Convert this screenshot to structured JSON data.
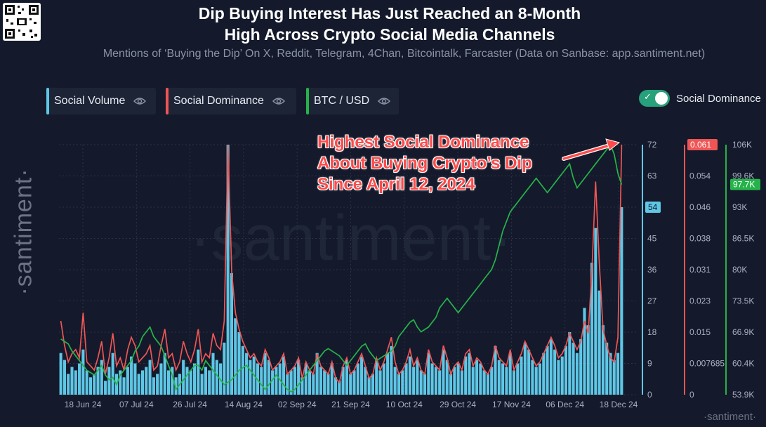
{
  "header": {
    "title_line1": "Dip Buying Interest Has Just Reached an 8-Month",
    "title_line2": "High Across Crypto Social Media Channels",
    "subtitle": "Mentions of ‘Buying the Dip’ On X, Reddit, Telegram, 4Chan, Bitcointalk, Farcaster (Data on Sanbase: app.santiment.net)"
  },
  "legend": [
    {
      "label": "Social Volume",
      "color": "#5fc7e6"
    },
    {
      "label": "Social Dominance",
      "color": "#ef5555"
    },
    {
      "label": "BTC / USD",
      "color": "#26b34a"
    }
  ],
  "toggle": {
    "label": "Social Dominance",
    "on": true
  },
  "annotation": {
    "line1": "Highest Social Dominance",
    "line2": "About Buying Crypto’s Dip",
    "line3": "Since April 12, 2024"
  },
  "branding": {
    "side": "·santiment·",
    "bottom": "·santiment·",
    "watermark": "·santiment·"
  },
  "colors": {
    "volume": "#5fc7e6",
    "dominance": "#ef5555",
    "btc": "#26b34a",
    "background": "#141a2b"
  },
  "chart_data": {
    "type": "bar",
    "x_ticks": [
      "18 Jun 24",
      "07 Jul 24",
      "26 Jul 24",
      "14 Aug 24",
      "02 Sep 24",
      "21 Sep 24",
      "10 Oct 24",
      "29 Oct 24",
      "17 Nov 24",
      "06 Dec 24",
      "18 Dec 24"
    ],
    "axes": {
      "volume": {
        "ticks": [
          "72",
          "63",
          "54",
          "45",
          "36",
          "27",
          "18",
          "9",
          "0"
        ],
        "range": [
          0,
          72
        ],
        "current": "54",
        "color": "#5fc7e6"
      },
      "dominance": {
        "ticks": [
          "0.061",
          "0.054",
          "0.046",
          "0.038",
          "0.031",
          "0.023",
          "0.015",
          "0.007685",
          "0"
        ],
        "range": [
          0,
          0.061
        ],
        "current": "0.061",
        "color": "#ef5555"
      },
      "btc": {
        "ticks": [
          "106K",
          "99.6K",
          "93K",
          "86.5K",
          "80K",
          "73.5K",
          "66.9K",
          "60.4K",
          "53.9K"
        ],
        "range": [
          53.9,
          106
        ],
        "current": "97.7K",
        "color": "#26b34a"
      }
    },
    "series": [
      {
        "name": "Social Volume",
        "type": "bar",
        "values": [
          12,
          10,
          6,
          8,
          7,
          9,
          13,
          7,
          5,
          6,
          8,
          10,
          4,
          8,
          12,
          6,
          7,
          5,
          8,
          11,
          9,
          6,
          7,
          8,
          10,
          5,
          6,
          9,
          12,
          7,
          8,
          5,
          6,
          10,
          8,
          7,
          9,
          13,
          6,
          8,
          7,
          12,
          10,
          9,
          15,
          72,
          35,
          22,
          18,
          14,
          12,
          10,
          11,
          9,
          8,
          12,
          10,
          7,
          8,
          9,
          11,
          6,
          7,
          8,
          10,
          5,
          9,
          7,
          6,
          12,
          8,
          7,
          6,
          9,
          5,
          4,
          8,
          10,
          6,
          7,
          9,
          11,
          8,
          5,
          6,
          10,
          7,
          9,
          12,
          14,
          8,
          6,
          7,
          9,
          11,
          8,
          10,
          7,
          6,
          12,
          9,
          8,
          7,
          13,
          10,
          6,
          8,
          9,
          7,
          11,
          12,
          8,
          10,
          9,
          7,
          6,
          8,
          14,
          10,
          9,
          8,
          12,
          7,
          9,
          11,
          15,
          13,
          10,
          8,
          9,
          12,
          14,
          16,
          13,
          10,
          11,
          14,
          18,
          15,
          12,
          16,
          25,
          20,
          38,
          48,
          30,
          20,
          15,
          12,
          10,
          12,
          54
        ],
        "range": [
          0,
          72
        ]
      },
      {
        "name": "Social Dominance",
        "type": "line",
        "values": [
          0.018,
          0.012,
          0.008,
          0.01,
          0.011,
          0.009,
          0.02,
          0.008,
          0.007,
          0.006,
          0.009,
          0.013,
          0.005,
          0.009,
          0.015,
          0.007,
          0.009,
          0.006,
          0.011,
          0.014,
          0.012,
          0.008,
          0.009,
          0.01,
          0.012,
          0.006,
          0.007,
          0.012,
          0.016,
          0.009,
          0.01,
          0.006,
          0.008,
          0.013,
          0.01,
          0.008,
          0.011,
          0.016,
          0.008,
          0.01,
          0.009,
          0.015,
          0.012,
          0.011,
          0.018,
          0.061,
          0.03,
          0.02,
          0.016,
          0.013,
          0.011,
          0.009,
          0.01,
          0.008,
          0.007,
          0.011,
          0.009,
          0.006,
          0.007,
          0.008,
          0.01,
          0.005,
          0.006,
          0.007,
          0.009,
          0.004,
          0.008,
          0.006,
          0.005,
          0.01,
          0.007,
          0.006,
          0.005,
          0.008,
          0.004,
          0.003,
          0.007,
          0.009,
          0.005,
          0.006,
          0.008,
          0.01,
          0.007,
          0.004,
          0.005,
          0.009,
          0.006,
          0.008,
          0.011,
          0.014,
          0.008,
          0.005,
          0.006,
          0.008,
          0.011,
          0.007,
          0.009,
          0.006,
          0.005,
          0.011,
          0.008,
          0.007,
          0.006,
          0.012,
          0.009,
          0.005,
          0.007,
          0.008,
          0.006,
          0.01,
          0.011,
          0.007,
          0.009,
          0.008,
          0.006,
          0.005,
          0.007,
          0.012,
          0.009,
          0.008,
          0.007,
          0.011,
          0.006,
          0.008,
          0.01,
          0.013,
          0.011,
          0.009,
          0.007,
          0.008,
          0.01,
          0.012,
          0.014,
          0.012,
          0.009,
          0.01,
          0.012,
          0.015,
          0.013,
          0.011,
          0.013,
          0.018,
          0.015,
          0.03,
          0.052,
          0.032,
          0.016,
          0.012,
          0.009,
          0.008,
          0.014,
          0.061
        ],
        "range": [
          0,
          0.061
        ]
      },
      {
        "name": "BTC / USD",
        "type": "line",
        "values": [
          65.5,
          65,
          64.5,
          63,
          62,
          61,
          60,
          59,
          58.5,
          58,
          59,
          60,
          58,
          57,
          57.5,
          56,
          58,
          59,
          60,
          61,
          63,
          64,
          66,
          67,
          68,
          66,
          65,
          64,
          62,
          60,
          58,
          55,
          56,
          57,
          58,
          59,
          60,
          60,
          59,
          61,
          60,
          59,
          58,
          57,
          56,
          56.5,
          57,
          58,
          59,
          59.5,
          60,
          59,
          58,
          57,
          56,
          55,
          56,
          57,
          58,
          57,
          56,
          55,
          54.5,
          55,
          56,
          57,
          58,
          59,
          60,
          61,
          62,
          63,
          63.5,
          63,
          62.5,
          62,
          61,
          60,
          61,
          62,
          63,
          64,
          64.5,
          63,
          62,
          61,
          61.5,
          62,
          62.5,
          63,
          64,
          66,
          67,
          68,
          69,
          69.5,
          68,
          67,
          67.5,
          68,
          69,
          70,
          72,
          73,
          74,
          73,
          72,
          71,
          72,
          73,
          74,
          75,
          76,
          77,
          78,
          79,
          80,
          82,
          85,
          88,
          90,
          92,
          93,
          94,
          95,
          96,
          97,
          98,
          99,
          98,
          97,
          96,
          97,
          98,
          99,
          100,
          101,
          102,
          99,
          97,
          98,
          99,
          100,
          101,
          102,
          103,
          104,
          105,
          106,
          104,
          100,
          97.7
        ],
        "range": [
          53.9,
          106
        ]
      }
    ]
  }
}
